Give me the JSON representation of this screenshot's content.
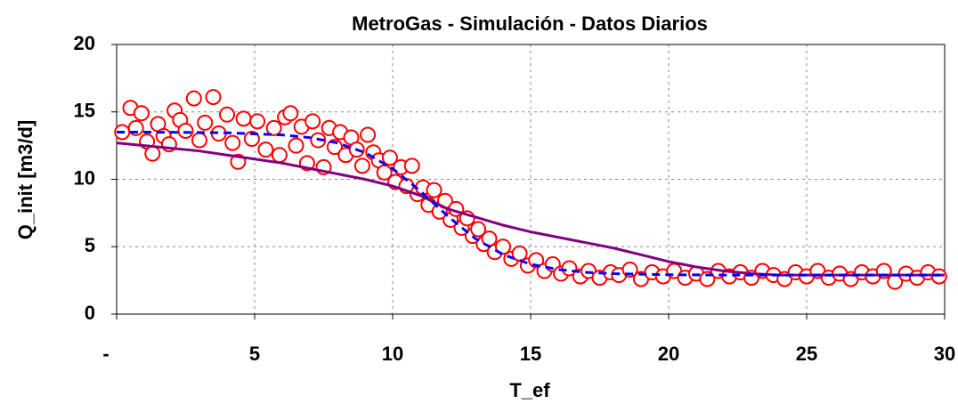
{
  "chart_data": {
    "type": "scatter",
    "title": "MetroGas - Simulación   -  Datos Diarios",
    "x_label": "T_ef",
    "y_label": "Q_init [m3/d]",
    "xlim": [
      0,
      30
    ],
    "ylim": [
      0,
      20
    ],
    "xticks": [
      {
        "value": 0,
        "label": "-"
      },
      5,
      10,
      15,
      20,
      25,
      30
    ],
    "yticks": [
      0,
      5,
      10,
      15,
      20
    ],
    "grid": true,
    "series": [
      {
        "kind": "scatter",
        "color": "#ff0000",
        "x": [
          0.2,
          0.5,
          0.7,
          0.9,
          1.1,
          1.3,
          1.5,
          1.7,
          1.9,
          2.1,
          2.3,
          2.5,
          2.8,
          3.0,
          3.2,
          3.5,
          3.7,
          4.0,
          4.2,
          4.4,
          4.6,
          4.9,
          5.1,
          5.4,
          5.7,
          5.9,
          6.1,
          6.3,
          6.5,
          6.7,
          6.9,
          7.1,
          7.3,
          7.5,
          7.7,
          7.9,
          8.1,
          8.3,
          8.5,
          8.7,
          8.9,
          9.1,
          9.3,
          9.5,
          9.7,
          9.9,
          10.1,
          10.3,
          10.5,
          10.7,
          10.9,
          11.1,
          11.3,
          11.5,
          11.7,
          11.9,
          12.1,
          12.3,
          12.5,
          12.7,
          12.9,
          13.1,
          13.3,
          13.5,
          13.7,
          14.0,
          14.3,
          14.6,
          14.9,
          15.2,
          15.5,
          15.8,
          16.1,
          16.4,
          16.8,
          17.1,
          17.5,
          17.9,
          18.2,
          18.6,
          19.0,
          19.4,
          19.8,
          20.2,
          20.6,
          21.0,
          21.4,
          21.8,
          22.2,
          22.6,
          23.0,
          23.4,
          23.8,
          24.2,
          24.6,
          25.0,
          25.4,
          25.8,
          26.2,
          26.6,
          27.0,
          27.4,
          27.8,
          28.2,
          28.6,
          29.0,
          29.4,
          29.8
        ],
        "y": [
          13.5,
          15.3,
          13.8,
          14.9,
          12.8,
          11.9,
          14.1,
          13.2,
          12.6,
          15.1,
          14.4,
          13.6,
          16.0,
          12.9,
          14.2,
          16.1,
          13.4,
          14.8,
          12.7,
          11.3,
          14.5,
          13.0,
          14.3,
          12.2,
          13.8,
          11.8,
          14.6,
          14.9,
          12.5,
          13.9,
          11.2,
          14.3,
          12.9,
          10.9,
          13.8,
          12.4,
          13.5,
          11.8,
          13.1,
          12.2,
          11.0,
          13.3,
          12.0,
          11.4,
          10.5,
          11.6,
          9.8,
          10.9,
          9.5,
          11.0,
          8.9,
          9.4,
          8.1,
          9.2,
          7.6,
          8.4,
          7.0,
          7.8,
          6.4,
          7.1,
          5.8,
          6.3,
          5.2,
          5.6,
          4.6,
          5.0,
          4.1,
          4.5,
          3.6,
          4.0,
          3.2,
          3.7,
          3.0,
          3.4,
          2.8,
          3.2,
          2.7,
          3.1,
          2.9,
          3.3,
          2.6,
          3.1,
          2.8,
          3.2,
          2.7,
          3.0,
          2.6,
          3.2,
          2.8,
          3.1,
          2.7,
          3.2,
          2.9,
          2.6,
          3.1,
          2.8,
          3.2,
          2.7,
          3.0,
          2.6,
          3.1,
          2.8,
          3.2,
          2.4,
          3.0,
          2.7,
          3.1,
          2.8
        ]
      },
      {
        "kind": "line",
        "color": "#800080",
        "dashed": false,
        "x": [
          0,
          1,
          2,
          3,
          4,
          5,
          6,
          7,
          8,
          9,
          10,
          11,
          12,
          13,
          14,
          15,
          16,
          17,
          18,
          19,
          20,
          21,
          22,
          23,
          24,
          25,
          26,
          27,
          28,
          29,
          30
        ],
        "y": [
          12.7,
          12.5,
          12.3,
          12.1,
          11.8,
          11.5,
          11.2,
          10.8,
          10.4,
          10.0,
          9.5,
          8.8,
          7.8,
          7.2,
          6.6,
          6.1,
          5.7,
          5.3,
          4.9,
          4.4,
          3.9,
          3.5,
          3.2,
          3.0,
          2.9,
          2.9,
          2.9,
          2.9,
          2.9,
          2.9,
          2.9
        ]
      },
      {
        "kind": "line",
        "color": "#0000ff",
        "dashed": true,
        "x": [
          0,
          2,
          4,
          6,
          7,
          8,
          9,
          10,
          11,
          12,
          13,
          14,
          15,
          16,
          17,
          18,
          20,
          22,
          24,
          26,
          28,
          30
        ],
        "y": [
          13.5,
          13.49,
          13.45,
          13.29,
          13.09,
          12.7,
          11.98,
          10.79,
          9.14,
          7.26,
          5.6,
          4.42,
          3.7,
          3.31,
          3.1,
          3.0,
          2.92,
          2.9,
          2.9,
          2.9,
          2.9,
          2.9
        ]
      }
    ]
  }
}
